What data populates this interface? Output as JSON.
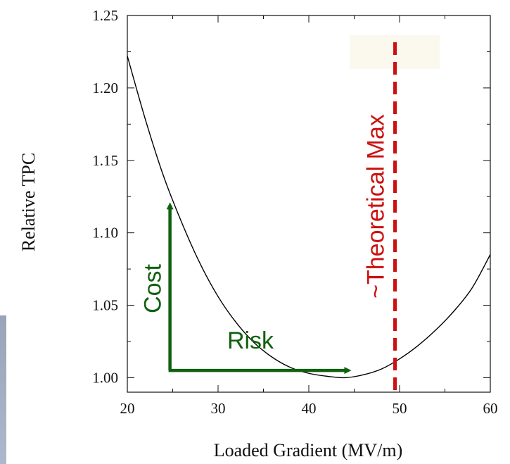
{
  "chart_data": {
    "type": "line",
    "title": "",
    "xlabel": "Loaded Gradient (MV/m)",
    "ylabel": "Relative TPC",
    "xlim": [
      20,
      60
    ],
    "ylim": [
      0.99,
      1.25
    ],
    "xticks": [
      20,
      30,
      40,
      50,
      60
    ],
    "yticks": [
      1.0,
      1.05,
      1.1,
      1.15,
      1.2,
      1.25
    ],
    "ytick_labels": [
      "1.00",
      "1.05",
      "1.10",
      "1.15",
      "1.20",
      "1.25"
    ],
    "grid": false,
    "series": [
      {
        "color": "#000000",
        "x": [
          20,
          22,
          24,
          26,
          28,
          30,
          32,
          34,
          36,
          38,
          40,
          42,
          44,
          46,
          48,
          50,
          52,
          54,
          56,
          58,
          60
        ],
        "values": [
          1.222,
          1.178,
          1.139,
          1.107,
          1.079,
          1.056,
          1.038,
          1.024,
          1.014,
          1.007,
          1.003,
          1.001,
          1.0,
          1.002,
          1.006,
          1.013,
          1.022,
          1.033,
          1.046,
          1.062,
          1.085
        ]
      }
    ],
    "annotations": {
      "theoretical_max": {
        "label": "~Theoretical Max",
        "x": 49.5,
        "color": "#cc1111",
        "style": "dashed"
      },
      "cost": {
        "label": "Cost",
        "x": 24.7,
        "y_from": 1.005,
        "y_to": 1.123,
        "color": "#106010"
      },
      "risk": {
        "label": "Risk",
        "y": 1.005,
        "x_from": 24.7,
        "x_to": 45.0,
        "color": "#106010"
      }
    }
  }
}
